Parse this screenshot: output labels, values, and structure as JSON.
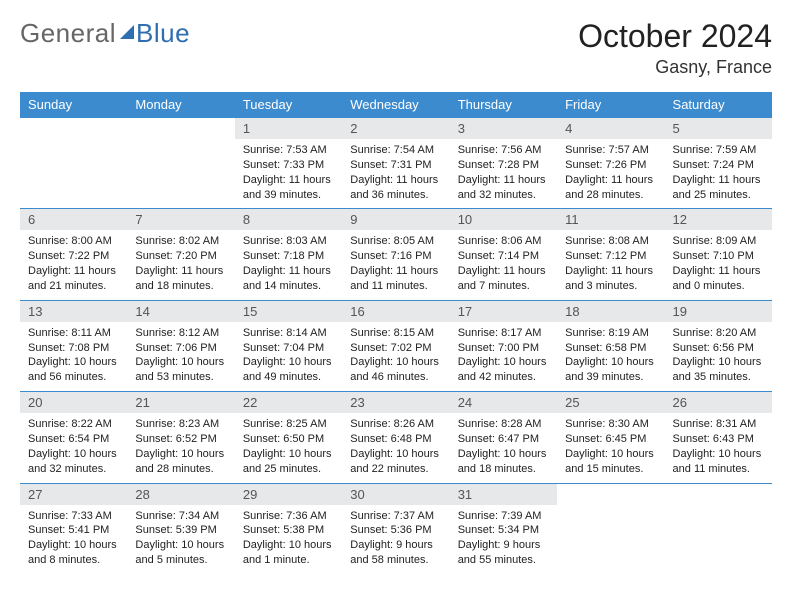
{
  "brand": {
    "part1": "General",
    "part2": "Blue"
  },
  "title": "October 2024",
  "location": "Gasny, France",
  "colors": {
    "header_bg": "#3c8bcf",
    "header_fg": "#ffffff",
    "daynum_bg": "#e7e8e9",
    "daynum_fg": "#555555",
    "rule": "#3c8bcf",
    "text": "#222222",
    "brand_gray": "#666666",
    "brand_blue": "#2f6fb0"
  },
  "weekdays": [
    "Sunday",
    "Monday",
    "Tuesday",
    "Wednesday",
    "Thursday",
    "Friday",
    "Saturday"
  ],
  "weeks": [
    [
      {
        "n": "",
        "sr": "",
        "ss": "",
        "dl": ""
      },
      {
        "n": "",
        "sr": "",
        "ss": "",
        "dl": ""
      },
      {
        "n": "1",
        "sr": "7:53 AM",
        "ss": "7:33 PM",
        "dl": "11 hours and 39 minutes."
      },
      {
        "n": "2",
        "sr": "7:54 AM",
        "ss": "7:31 PM",
        "dl": "11 hours and 36 minutes."
      },
      {
        "n": "3",
        "sr": "7:56 AM",
        "ss": "7:28 PM",
        "dl": "11 hours and 32 minutes."
      },
      {
        "n": "4",
        "sr": "7:57 AM",
        "ss": "7:26 PM",
        "dl": "11 hours and 28 minutes."
      },
      {
        "n": "5",
        "sr": "7:59 AM",
        "ss": "7:24 PM",
        "dl": "11 hours and 25 minutes."
      }
    ],
    [
      {
        "n": "6",
        "sr": "8:00 AM",
        "ss": "7:22 PM",
        "dl": "11 hours and 21 minutes."
      },
      {
        "n": "7",
        "sr": "8:02 AM",
        "ss": "7:20 PM",
        "dl": "11 hours and 18 minutes."
      },
      {
        "n": "8",
        "sr": "8:03 AM",
        "ss": "7:18 PM",
        "dl": "11 hours and 14 minutes."
      },
      {
        "n": "9",
        "sr": "8:05 AM",
        "ss": "7:16 PM",
        "dl": "11 hours and 11 minutes."
      },
      {
        "n": "10",
        "sr": "8:06 AM",
        "ss": "7:14 PM",
        "dl": "11 hours and 7 minutes."
      },
      {
        "n": "11",
        "sr": "8:08 AM",
        "ss": "7:12 PM",
        "dl": "11 hours and 3 minutes."
      },
      {
        "n": "12",
        "sr": "8:09 AM",
        "ss": "7:10 PM",
        "dl": "11 hours and 0 minutes."
      }
    ],
    [
      {
        "n": "13",
        "sr": "8:11 AM",
        "ss": "7:08 PM",
        "dl": "10 hours and 56 minutes."
      },
      {
        "n": "14",
        "sr": "8:12 AM",
        "ss": "7:06 PM",
        "dl": "10 hours and 53 minutes."
      },
      {
        "n": "15",
        "sr": "8:14 AM",
        "ss": "7:04 PM",
        "dl": "10 hours and 49 minutes."
      },
      {
        "n": "16",
        "sr": "8:15 AM",
        "ss": "7:02 PM",
        "dl": "10 hours and 46 minutes."
      },
      {
        "n": "17",
        "sr": "8:17 AM",
        "ss": "7:00 PM",
        "dl": "10 hours and 42 minutes."
      },
      {
        "n": "18",
        "sr": "8:19 AM",
        "ss": "6:58 PM",
        "dl": "10 hours and 39 minutes."
      },
      {
        "n": "19",
        "sr": "8:20 AM",
        "ss": "6:56 PM",
        "dl": "10 hours and 35 minutes."
      }
    ],
    [
      {
        "n": "20",
        "sr": "8:22 AM",
        "ss": "6:54 PM",
        "dl": "10 hours and 32 minutes."
      },
      {
        "n": "21",
        "sr": "8:23 AM",
        "ss": "6:52 PM",
        "dl": "10 hours and 28 minutes."
      },
      {
        "n": "22",
        "sr": "8:25 AM",
        "ss": "6:50 PM",
        "dl": "10 hours and 25 minutes."
      },
      {
        "n": "23",
        "sr": "8:26 AM",
        "ss": "6:48 PM",
        "dl": "10 hours and 22 minutes."
      },
      {
        "n": "24",
        "sr": "8:28 AM",
        "ss": "6:47 PM",
        "dl": "10 hours and 18 minutes."
      },
      {
        "n": "25",
        "sr": "8:30 AM",
        "ss": "6:45 PM",
        "dl": "10 hours and 15 minutes."
      },
      {
        "n": "26",
        "sr": "8:31 AM",
        "ss": "6:43 PM",
        "dl": "10 hours and 11 minutes."
      }
    ],
    [
      {
        "n": "27",
        "sr": "7:33 AM",
        "ss": "5:41 PM",
        "dl": "10 hours and 8 minutes."
      },
      {
        "n": "28",
        "sr": "7:34 AM",
        "ss": "5:39 PM",
        "dl": "10 hours and 5 minutes."
      },
      {
        "n": "29",
        "sr": "7:36 AM",
        "ss": "5:38 PM",
        "dl": "10 hours and 1 minute."
      },
      {
        "n": "30",
        "sr": "7:37 AM",
        "ss": "5:36 PM",
        "dl": "9 hours and 58 minutes."
      },
      {
        "n": "31",
        "sr": "7:39 AM",
        "ss": "5:34 PM",
        "dl": "9 hours and 55 minutes."
      },
      {
        "n": "",
        "sr": "",
        "ss": "",
        "dl": ""
      },
      {
        "n": "",
        "sr": "",
        "ss": "",
        "dl": ""
      }
    ]
  ],
  "labels": {
    "sunrise": "Sunrise:",
    "sunset": "Sunset:",
    "daylight": "Daylight:"
  }
}
